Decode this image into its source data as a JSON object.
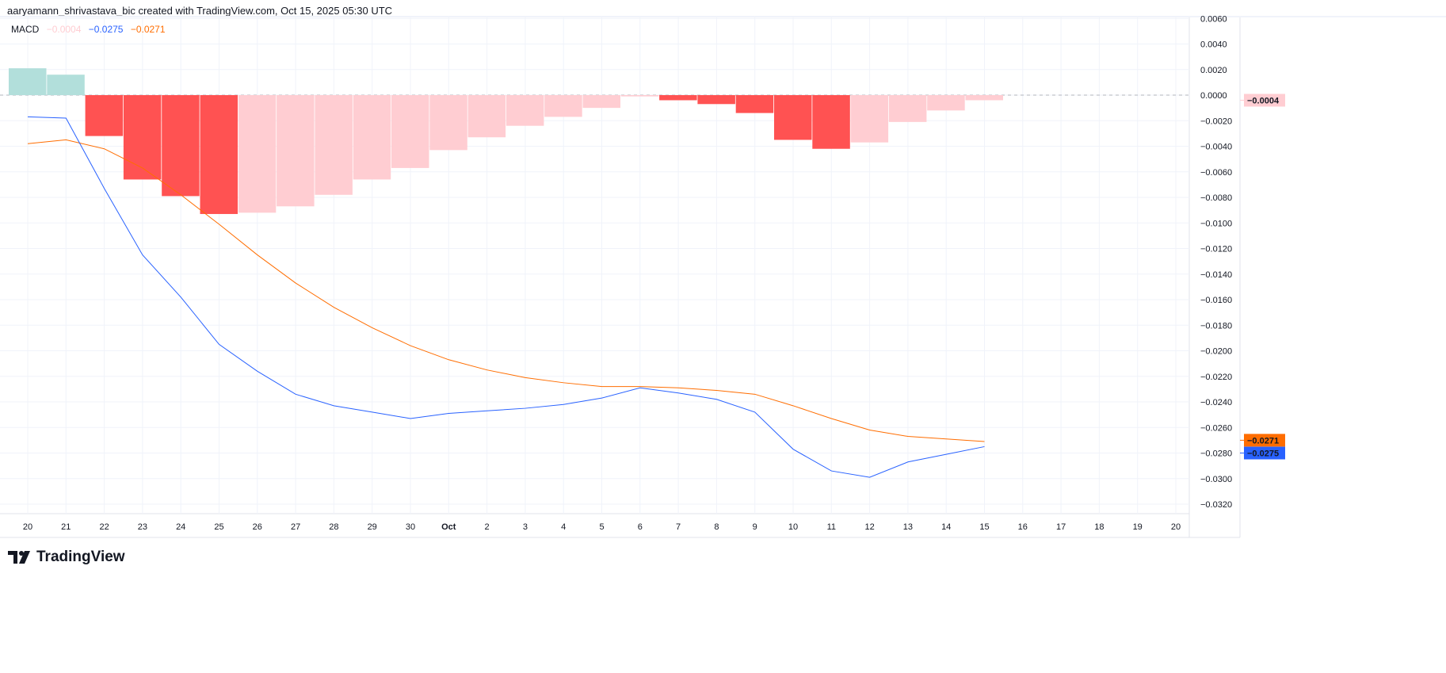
{
  "header": {
    "attribution": "aaryamann_shrivastava_bic created with TradingView.com, Oct 15, 2025 05:30 UTC"
  },
  "legend": {
    "name": "MACD",
    "histogram": "−0.0004",
    "macd": "−0.0275",
    "signal": "−0.0271"
  },
  "logo": {
    "text": "TradingView"
  },
  "colors": {
    "macd": "#2962FF",
    "signal": "#FF6D00",
    "hist_neg_falling": "#FF5252",
    "hist_neg_rising": "#FFCDD2",
    "hist_pos_falling": "#B2DFDB",
    "hist_pos_rising": "#26A69A"
  },
  "chart_data": {
    "type": "bar+line",
    "x_labels": [
      "20",
      "21",
      "22",
      "23",
      "24",
      "25",
      "26",
      "27",
      "28",
      "29",
      "30",
      "Oct",
      "2",
      "3",
      "4",
      "5",
      "6",
      "7",
      "8",
      "9",
      "10",
      "11",
      "12",
      "13",
      "14",
      "15",
      "16",
      "17",
      "18",
      "19",
      "20"
    ],
    "y_ticks": [
      "0.0060",
      "0.0040",
      "0.0020",
      "0.0000",
      "−0.0020",
      "−0.0040",
      "−0.0060",
      "−0.0080",
      "−0.0100",
      "−0.0120",
      "−0.0140",
      "−0.0160",
      "−0.0180",
      "−0.0200",
      "−0.0220",
      "−0.0240",
      "−0.0260",
      "−0.0280",
      "−0.0300",
      "−0.0320"
    ],
    "ylim": [
      -0.0335,
      0.0063
    ],
    "grid": true,
    "series": [
      {
        "name": "Histogram",
        "type": "bar",
        "values": [
          0.0021,
          0.0016,
          -0.0032,
          -0.0066,
          -0.0079,
          -0.0093,
          -0.0092,
          -0.0087,
          -0.0078,
          -0.0066,
          -0.0057,
          -0.0043,
          -0.0033,
          -0.0024,
          -0.0017,
          -0.001,
          -0.0001,
          -0.0004,
          -0.0007,
          -0.0014,
          -0.0035,
          -0.0042,
          -0.0037,
          -0.0021,
          -0.0012,
          -0.0004
        ]
      },
      {
        "name": "MACD",
        "type": "line",
        "values": [
          -0.0017,
          -0.0018,
          -0.0073,
          -0.0125,
          -0.0158,
          -0.0195,
          -0.0216,
          -0.0234,
          -0.0243,
          -0.0248,
          -0.0253,
          -0.0249,
          -0.0247,
          -0.0245,
          -0.0242,
          -0.0237,
          -0.0229,
          -0.0233,
          -0.0238,
          -0.0248,
          -0.0277,
          -0.0294,
          -0.0299,
          -0.0287,
          -0.0281,
          -0.0275
        ]
      },
      {
        "name": "Signal",
        "type": "line",
        "values": [
          -0.0038,
          -0.0035,
          -0.0042,
          -0.0057,
          -0.0078,
          -0.0101,
          -0.0125,
          -0.0147,
          -0.0166,
          -0.0182,
          -0.0196,
          -0.0207,
          -0.0215,
          -0.0221,
          -0.0225,
          -0.0228,
          -0.0228,
          -0.0229,
          -0.0231,
          -0.0234,
          -0.0243,
          -0.0253,
          -0.0262,
          -0.0267,
          -0.0269,
          -0.0271
        ]
      }
    ],
    "last_values": {
      "histogram": "−0.0004",
      "macd": "−0.0275",
      "signal": "−0.0271"
    }
  }
}
